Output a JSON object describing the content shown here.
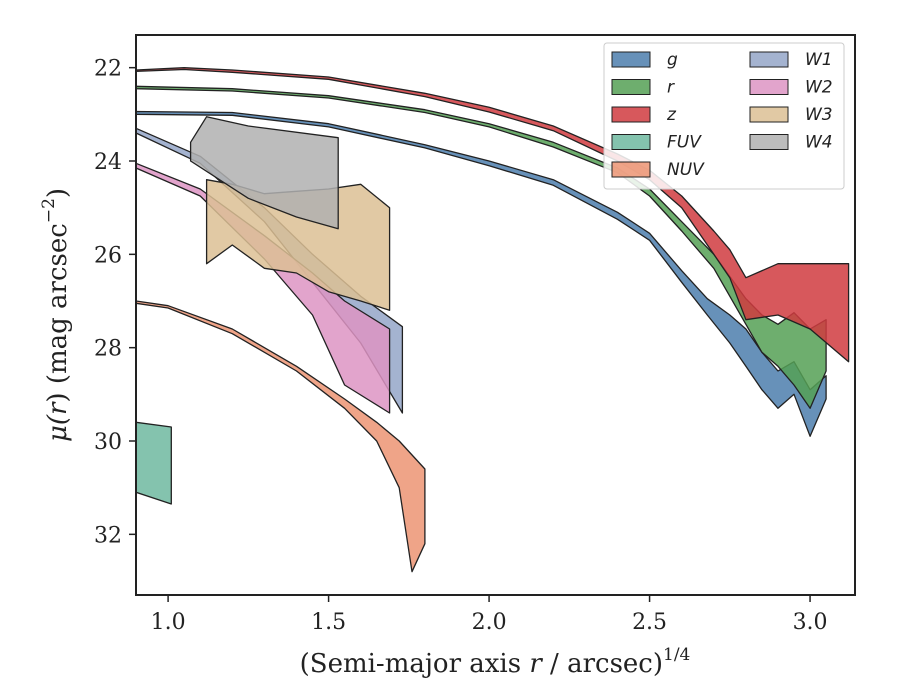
{
  "chart_data": {
    "type": "area",
    "xlabel": "(Semi-major axis r / arcsec)^{1/4}",
    "ylabel": "μ(r) (mag arcsec^{−2})",
    "xlabel_parts": {
      "pre": "(Semi-major axis ",
      "var": "r",
      "post": " / arcsec)",
      "sup": "1/4"
    },
    "ylabel_parts": {
      "mu": "μ(",
      "var": "r",
      "mid": ") (mag arcsec",
      "sup": "−2",
      "end": ")"
    },
    "xlim": [
      0.9,
      3.14
    ],
    "ylim": [
      33.3,
      21.3
    ],
    "y_inverted": true,
    "xticks": [
      1.0,
      1.5,
      2.0,
      2.5,
      3.0
    ],
    "xtick_labels": [
      "1.0",
      "1.5",
      "2.0",
      "2.5",
      "3.0"
    ],
    "yticks": [
      22,
      24,
      26,
      28,
      30,
      32
    ],
    "ytick_labels": [
      "22",
      "24",
      "26",
      "28",
      "30",
      "32"
    ],
    "grid": false,
    "legend_position": "top-right",
    "legend_columns": 2,
    "series": [
      {
        "name": "g",
        "color": "#4c7ead",
        "upper": [
          [
            0.9,
            22.94
          ],
          [
            1.2,
            22.96
          ],
          [
            1.5,
            23.2
          ],
          [
            1.8,
            23.65
          ],
          [
            2.0,
            24.0
          ],
          [
            2.2,
            24.4
          ],
          [
            2.4,
            25.1
          ],
          [
            2.5,
            25.55
          ],
          [
            2.6,
            26.35
          ],
          [
            2.68,
            26.95
          ],
          [
            2.75,
            27.3
          ],
          [
            2.8,
            27.6
          ],
          [
            2.85,
            28.1
          ],
          [
            2.9,
            28.5
          ],
          [
            2.95,
            28.3
          ],
          [
            3.0,
            28.9
          ],
          [
            3.05,
            28.6
          ]
        ],
        "lower": [
          [
            0.9,
            23.0
          ],
          [
            1.2,
            23.02
          ],
          [
            1.5,
            23.27
          ],
          [
            1.8,
            23.72
          ],
          [
            2.0,
            24.1
          ],
          [
            2.2,
            24.52
          ],
          [
            2.4,
            25.25
          ],
          [
            2.5,
            25.7
          ],
          [
            2.6,
            26.6
          ],
          [
            2.68,
            27.3
          ],
          [
            2.75,
            27.9
          ],
          [
            2.8,
            28.4
          ],
          [
            2.85,
            28.9
          ],
          [
            2.9,
            29.3
          ],
          [
            2.95,
            29.0
          ],
          [
            3.0,
            29.9
          ],
          [
            3.05,
            29.1
          ]
        ]
      },
      {
        "name": "r",
        "color": "#55a055",
        "upper": [
          [
            0.9,
            22.4
          ],
          [
            1.2,
            22.45
          ],
          [
            1.5,
            22.6
          ],
          [
            1.8,
            22.9
          ],
          [
            2.0,
            23.2
          ],
          [
            2.2,
            23.6
          ],
          [
            2.4,
            24.15
          ],
          [
            2.5,
            24.6
          ],
          [
            2.6,
            25.3
          ],
          [
            2.7,
            26.0
          ],
          [
            2.8,
            26.95
          ],
          [
            2.85,
            27.3
          ],
          [
            2.9,
            27.5
          ],
          [
            2.95,
            27.25
          ],
          [
            3.0,
            27.6
          ],
          [
            3.05,
            27.4
          ]
        ],
        "lower": [
          [
            0.9,
            22.45
          ],
          [
            1.2,
            22.5
          ],
          [
            1.5,
            22.65
          ],
          [
            1.8,
            22.96
          ],
          [
            2.0,
            23.27
          ],
          [
            2.2,
            23.7
          ],
          [
            2.4,
            24.25
          ],
          [
            2.5,
            24.75
          ],
          [
            2.6,
            25.5
          ],
          [
            2.7,
            26.3
          ],
          [
            2.8,
            27.5
          ],
          [
            2.85,
            28.1
          ],
          [
            2.9,
            28.4
          ],
          [
            2.95,
            28.8
          ],
          [
            3.0,
            29.3
          ],
          [
            3.05,
            28.5
          ]
        ]
      },
      {
        "name": "z",
        "color": "#d03b3f",
        "upper": [
          [
            0.9,
            22.05
          ],
          [
            1.05,
            22.0
          ],
          [
            1.2,
            22.05
          ],
          [
            1.5,
            22.2
          ],
          [
            1.8,
            22.55
          ],
          [
            2.0,
            22.85
          ],
          [
            2.2,
            23.25
          ],
          [
            2.4,
            23.85
          ],
          [
            2.5,
            24.2
          ],
          [
            2.6,
            24.75
          ],
          [
            2.7,
            25.5
          ],
          [
            2.75,
            25.9
          ],
          [
            2.8,
            26.5
          ],
          [
            2.9,
            26.2
          ],
          [
            3.0,
            26.2
          ],
          [
            3.12,
            26.2
          ]
        ],
        "lower": [
          [
            0.9,
            22.08
          ],
          [
            1.05,
            22.04
          ],
          [
            1.2,
            22.1
          ],
          [
            1.5,
            22.25
          ],
          [
            1.8,
            22.62
          ],
          [
            2.0,
            22.95
          ],
          [
            2.2,
            23.35
          ],
          [
            2.4,
            24.0
          ],
          [
            2.5,
            24.4
          ],
          [
            2.6,
            25.0
          ],
          [
            2.7,
            26.0
          ],
          [
            2.75,
            26.5
          ],
          [
            2.8,
            27.4
          ],
          [
            2.9,
            27.3
          ],
          [
            3.0,
            27.6
          ],
          [
            3.12,
            28.3
          ]
        ]
      },
      {
        "name": "FUV",
        "color": "#6fb8a0",
        "upper": [
          [
            0.9,
            29.6
          ],
          [
            1.01,
            29.7
          ]
        ],
        "lower": [
          [
            0.9,
            31.1
          ],
          [
            1.01,
            31.35
          ]
        ]
      },
      {
        "name": "NUV",
        "color": "#ec9473",
        "upper": [
          [
            0.9,
            27.0
          ],
          [
            1.0,
            27.1
          ],
          [
            1.2,
            27.6
          ],
          [
            1.4,
            28.4
          ],
          [
            1.55,
            29.1
          ],
          [
            1.65,
            29.6
          ],
          [
            1.72,
            30.0
          ],
          [
            1.8,
            30.6
          ]
        ],
        "lower": [
          [
            0.9,
            27.05
          ],
          [
            1.0,
            27.15
          ],
          [
            1.2,
            27.7
          ],
          [
            1.4,
            28.5
          ],
          [
            1.55,
            29.3
          ],
          [
            1.65,
            30.0
          ],
          [
            1.72,
            31.0
          ],
          [
            1.76,
            32.8
          ],
          [
            1.8,
            32.2
          ]
        ]
      },
      {
        "name": "W1",
        "color": "#94a6c8",
        "upper": [
          [
            0.9,
            23.3
          ],
          [
            1.1,
            23.9
          ],
          [
            1.3,
            25.0
          ],
          [
            1.45,
            26.0
          ],
          [
            1.6,
            26.9
          ],
          [
            1.73,
            27.55
          ]
        ],
        "lower": [
          [
            0.9,
            23.4
          ],
          [
            1.1,
            24.05
          ],
          [
            1.3,
            25.3
          ],
          [
            1.45,
            26.6
          ],
          [
            1.6,
            27.9
          ],
          [
            1.73,
            29.4
          ]
        ]
      },
      {
        "name": "W2",
        "color": "#dd94c3",
        "upper": [
          [
            0.9,
            24.05
          ],
          [
            1.1,
            24.6
          ],
          [
            1.3,
            25.6
          ],
          [
            1.45,
            26.4
          ],
          [
            1.55,
            27.0
          ],
          [
            1.69,
            27.6
          ]
        ],
        "lower": [
          [
            0.9,
            24.15
          ],
          [
            1.1,
            24.75
          ],
          [
            1.3,
            26.1
          ],
          [
            1.45,
            27.3
          ],
          [
            1.55,
            28.8
          ],
          [
            1.69,
            29.4
          ]
        ]
      },
      {
        "name": "W3",
        "color": "#dcbf94",
        "upper": [
          [
            1.12,
            24.4
          ],
          [
            1.2,
            24.5
          ],
          [
            1.3,
            24.7
          ],
          [
            1.4,
            24.65
          ],
          [
            1.5,
            24.6
          ],
          [
            1.6,
            24.5
          ],
          [
            1.69,
            25.0
          ]
        ],
        "lower": [
          [
            1.12,
            26.2
          ],
          [
            1.2,
            25.8
          ],
          [
            1.3,
            26.3
          ],
          [
            1.4,
            26.4
          ],
          [
            1.5,
            26.8
          ],
          [
            1.6,
            27.0
          ],
          [
            1.69,
            27.2
          ]
        ]
      },
      {
        "name": "W4",
        "color": "#b0b0b0",
        "upper": [
          [
            1.07,
            23.6
          ],
          [
            1.12,
            23.05
          ],
          [
            1.25,
            23.25
          ],
          [
            1.53,
            23.5
          ]
        ],
        "lower": [
          [
            1.07,
            24.0
          ],
          [
            1.25,
            24.8
          ],
          [
            1.4,
            25.2
          ],
          [
            1.53,
            25.45
          ]
        ]
      }
    ]
  }
}
